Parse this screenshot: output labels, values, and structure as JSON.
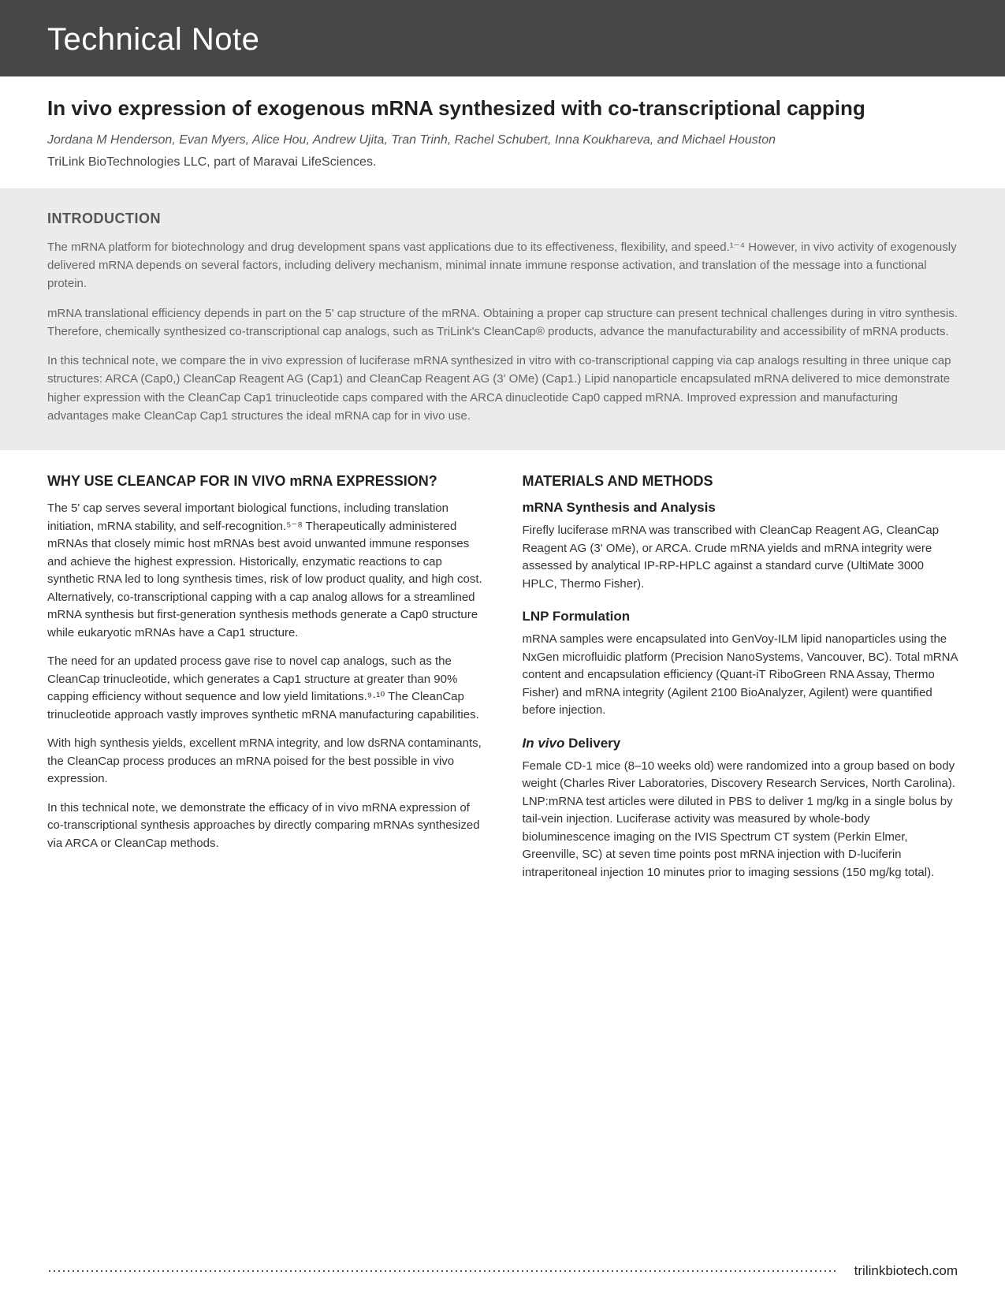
{
  "banner": {
    "title": "Technical Note"
  },
  "article": {
    "title": "In vivo expression of exogenous mRNA synthesized with co-transcriptional capping",
    "authors": "Jordana M Henderson, Evan Myers, Alice Hou, Andrew Ujita, Tran Trinh, Rachel Schubert, Inna Koukhareva, and Michael Houston",
    "affiliation": "TriLink BioTechnologies LLC, part of Maravai LifeSciences."
  },
  "intro": {
    "heading": "INTRODUCTION",
    "p1": "The mRNA platform for biotechnology and drug development spans vast applications due to its effectiveness, flexibility, and speed.¹⁻⁴ However, in vivo activity of exogenously delivered mRNA depends on several factors, including delivery mechanism, minimal innate immune response activation, and translation of the message into a functional protein.",
    "p2": "mRNA translational efficiency depends in part on the 5' cap structure of the mRNA. Obtaining a proper cap structure can present technical challenges during in vitro synthesis. Therefore, chemically synthesized co-transcriptional cap analogs, such as TriLink's CleanCap® products, advance the manufacturability and accessibility of mRNA products.",
    "p3": "In this technical note, we compare the in vivo expression of luciferase mRNA synthesized in vitro with co-transcriptional capping via cap analogs resulting in three unique cap structures: ARCA (Cap0,) CleanCap Reagent AG (Cap1) and CleanCap Reagent AG (3' OMe) (Cap1.) Lipid nanoparticle encapsulated mRNA delivered to mice demonstrate higher expression with the CleanCap Cap1 trinucleotide caps compared with the ARCA dinucleotide Cap0 capped mRNA. Improved expression and manufacturing advantages make CleanCap Cap1 structures the ideal mRNA cap for in vivo use."
  },
  "left": {
    "heading": "WHY USE CLEANCAP FOR IN VIVO mRNA EXPRESSION?",
    "p1": "The 5' cap serves several important biological functions, including translation initiation, mRNA stability, and self-recognition.⁵⁻⁸ Therapeutically administered mRNAs that closely mimic host mRNAs best avoid unwanted immune responses and achieve the highest expression. Historically, enzymatic reactions to cap synthetic RNA led to long synthesis times, risk of low product quality, and high cost. Alternatively, co-transcriptional capping with a cap analog allows for a streamlined mRNA synthesis but first-generation synthesis methods generate a Cap0 structure while eukaryotic mRNAs have a Cap1 structure.",
    "p2": "The need for an updated process gave rise to novel cap analogs, such as the CleanCap trinucleotide, which generates a Cap1 structure at greater than 90% capping efficiency without sequence and low yield limitations.⁹·¹⁰ The CleanCap trinucleotide approach vastly improves synthetic mRNA manufacturing capabilities.",
    "p3": "With high synthesis yields, excellent mRNA integrity, and low dsRNA contaminants, the CleanCap process produces an mRNA poised for the best possible in vivo expression.",
    "p4": "In this technical note, we demonstrate the efficacy of in vivo mRNA expression of co-transcriptional synthesis approaches by directly comparing mRNAs synthesized via ARCA or CleanCap methods."
  },
  "right": {
    "heading": "MATERIALS AND METHODS",
    "sub1": "mRNA Synthesis and Analysis",
    "p1": "Firefly luciferase mRNA was transcribed with CleanCap Reagent AG, CleanCap Reagent AG (3' OMe), or ARCA. Crude mRNA yields and mRNA integrity were assessed by analytical IP-RP-HPLC against a standard curve (UltiMate 3000 HPLC, Thermo Fisher).",
    "sub2": "LNP Formulation",
    "p2": "mRNA samples were encapsulated into GenVoy-ILM lipid nanoparticles using the NxGen microfluidic platform (Precision NanoSystems, Vancouver, BC). Total mRNA content and encapsulation efficiency (Quant-iT RiboGreen RNA Assay, Thermo Fisher) and mRNA integrity (Agilent 2100 BioAnalyzer, Agilent) were quantified before injection.",
    "sub3_prefix": "In vivo",
    "sub3_suffix": " Delivery",
    "p3": "Female CD-1 mice (8–10 weeks old) were randomized into a group based on body weight (Charles River Laboratories, Discovery Research Services, North Carolina). LNP:mRNA test articles were diluted in PBS to deliver 1 mg/kg in a single bolus by tail-vein injection. Luciferase activity was measured by whole-body bioluminescence imaging on the IVIS Spectrum CT system (Perkin Elmer, Greenville, SC) at seven time points post mRNA injection with D-luciferin intraperitoneal injection 10 minutes prior to imaging sessions (150 mg/kg total)."
  },
  "footer": {
    "site": "trilinkbiotech.com"
  }
}
